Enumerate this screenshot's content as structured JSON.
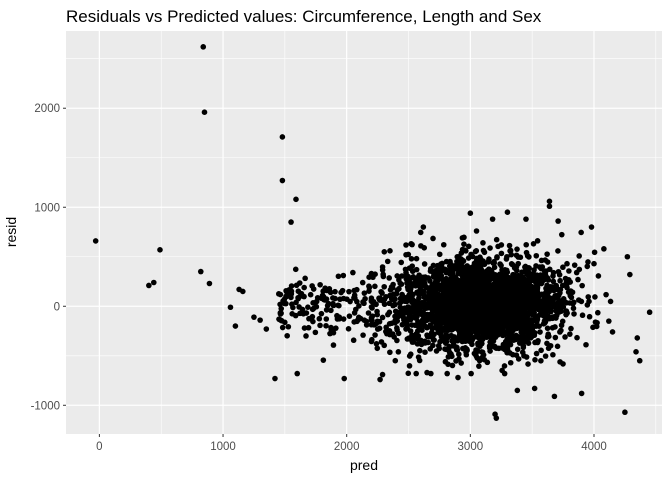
{
  "chart_data": {
    "type": "scatter",
    "title": "Residuals vs Predicted values: Circumference, Length and Sex",
    "xlabel": "pred",
    "ylabel": "resid",
    "xlim": [
      -270,
      4550
    ],
    "ylim": [
      -1290,
      2780
    ],
    "x_ticks": [
      0,
      1000,
      2000,
      3000,
      4000
    ],
    "y_ticks": [
      -1000,
      0,
      1000,
      2000
    ],
    "x_tick_labels": [
      "0",
      "1000",
      "2000",
      "3000",
      "4000"
    ],
    "y_tick_labels": [
      "-1000",
      "0",
      "1000",
      "2000"
    ],
    "grid": true,
    "legend": "none",
    "colors": {
      "panel_background": "#ebebeb",
      "grid_major": "#ffffff",
      "point": "#000000"
    },
    "points": [
      {
        "x": -30,
        "y": 660
      },
      {
        "x": 400,
        "y": 210
      },
      {
        "x": 440,
        "y": 240
      },
      {
        "x": 490,
        "y": 570
      },
      {
        "x": 820,
        "y": 350
      },
      {
        "x": 840,
        "y": 2620
      },
      {
        "x": 850,
        "y": 1960
      },
      {
        "x": 890,
        "y": 230
      },
      {
        "x": 1060,
        "y": -10
      },
      {
        "x": 1100,
        "y": -200
      },
      {
        "x": 1130,
        "y": 170
      },
      {
        "x": 1160,
        "y": 150
      },
      {
        "x": 1250,
        "y": -110
      },
      {
        "x": 1300,
        "y": -140
      },
      {
        "x": 1350,
        "y": -230
      },
      {
        "x": 1420,
        "y": -730
      },
      {
        "x": 1480,
        "y": 1710
      },
      {
        "x": 1480,
        "y": 1270
      },
      {
        "x": 1550,
        "y": 850
      },
      {
        "x": 1590,
        "y": 1080
      },
      {
        "x": 1600,
        "y": -680
      },
      {
        "x": 1980,
        "y": -730
      },
      {
        "x": 2290,
        "y": -690
      },
      {
        "x": 2270,
        "y": -740
      },
      {
        "x": 2650,
        "y": -670
      },
      {
        "x": 2900,
        "y": -720
      },
      {
        "x": 3000,
        "y": 940
      },
      {
        "x": 3300,
        "y": 950
      },
      {
        "x": 3450,
        "y": 880
      },
      {
        "x": 3640,
        "y": 1060
      },
      {
        "x": 3640,
        "y": 1010
      },
      {
        "x": 3710,
        "y": 860
      },
      {
        "x": 3980,
        "y": 800
      },
      {
        "x": 3200,
        "y": -1090
      },
      {
        "x": 3210,
        "y": -1130
      },
      {
        "x": 3380,
        "y": -850
      },
      {
        "x": 3520,
        "y": -830
      },
      {
        "x": 3680,
        "y": -910
      },
      {
        "x": 3900,
        "y": -880
      },
      {
        "x": 4250,
        "y": -1070
      },
      {
        "x": 4270,
        "y": 500
      },
      {
        "x": 4290,
        "y": 320
      },
      {
        "x": 4340,
        "y": -460
      },
      {
        "x": 4370,
        "y": -550
      },
      {
        "x": 4350,
        "y": -320
      },
      {
        "x": 4450,
        "y": -60
      },
      {
        "x": 4000,
        "y": 430
      },
      {
        "x": 4080,
        "y": 580
      },
      {
        "x": 4120,
        "y": -150
      },
      {
        "x": 3860,
        "y": 340
      },
      {
        "x": 3770,
        "y": 280
      },
      {
        "x": 3180,
        "y": 880
      },
      {
        "x": 3050,
        "y": 760
      },
      {
        "x": 2600,
        "y": 610
      },
      {
        "x": 2620,
        "y": 800
      },
      {
        "x": 2480,
        "y": 520
      },
      {
        "x": 2350,
        "y": 560
      },
      {
        "x": 2200,
        "y": 330
      },
      {
        "x": 2050,
        "y": 340
      }
    ],
    "cloud": {
      "count": 2600,
      "x_mean": 3100,
      "x_sd": 330,
      "y_mean": 20,
      "y_sd": 230,
      "x_range": [
        2200,
        4150
      ],
      "y_range": [
        -680,
        820
      ]
    },
    "lead_in": {
      "count": 230,
      "x_range": [
        1450,
        2600
      ],
      "y_mean": 0,
      "y_sd": 190
    }
  }
}
